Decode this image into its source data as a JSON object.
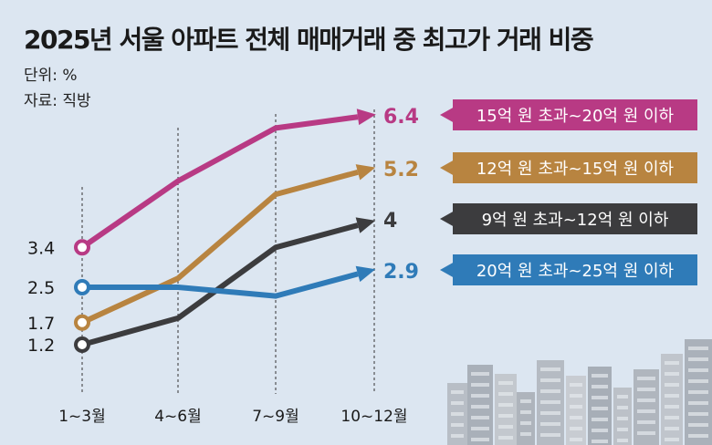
{
  "header": {
    "title": "2025년 서울 아파트 전체 매매거래 중 최고가 거래 비중",
    "unit": "단위: %",
    "source": "자료: 직방"
  },
  "chart_data": {
    "type": "line",
    "title": "2025년 서울 아파트 전체 매매거래 중 최고가 거래 비중",
    "unit": "%",
    "categories": [
      "1~3월",
      "4~6월",
      "7~9월",
      "10~12월"
    ],
    "series": [
      {
        "name": "15억 원 초과~20억 원 이하",
        "color": "#b83a84",
        "values": [
          3.4,
          4.9,
          6.1,
          6.4
        ],
        "start_label": "3.4",
        "end_label": "6.4"
      },
      {
        "name": "12억 원 초과~15억 원 이하",
        "color": "#b88440",
        "values": [
          1.7,
          2.7,
          4.6,
          5.2
        ],
        "start_label": "1.7",
        "end_label": "5.2"
      },
      {
        "name": "9억 원 초과~12억 원 이하",
        "color": "#3c3c3e",
        "values": [
          1.2,
          1.8,
          3.4,
          4.0
        ],
        "start_label": "1.2",
        "end_label": "4"
      },
      {
        "name": "20억 원 초과~25억 원 이하",
        "color": "#2f7bb8",
        "values": [
          2.5,
          2.5,
          2.3,
          2.9
        ],
        "start_label": "2.5",
        "end_label": "2.9"
      }
    ],
    "grid": "vertical dashed lines at 4~6월, 7~9월, 10~12월",
    "legend": "right, labels at line ends"
  }
}
